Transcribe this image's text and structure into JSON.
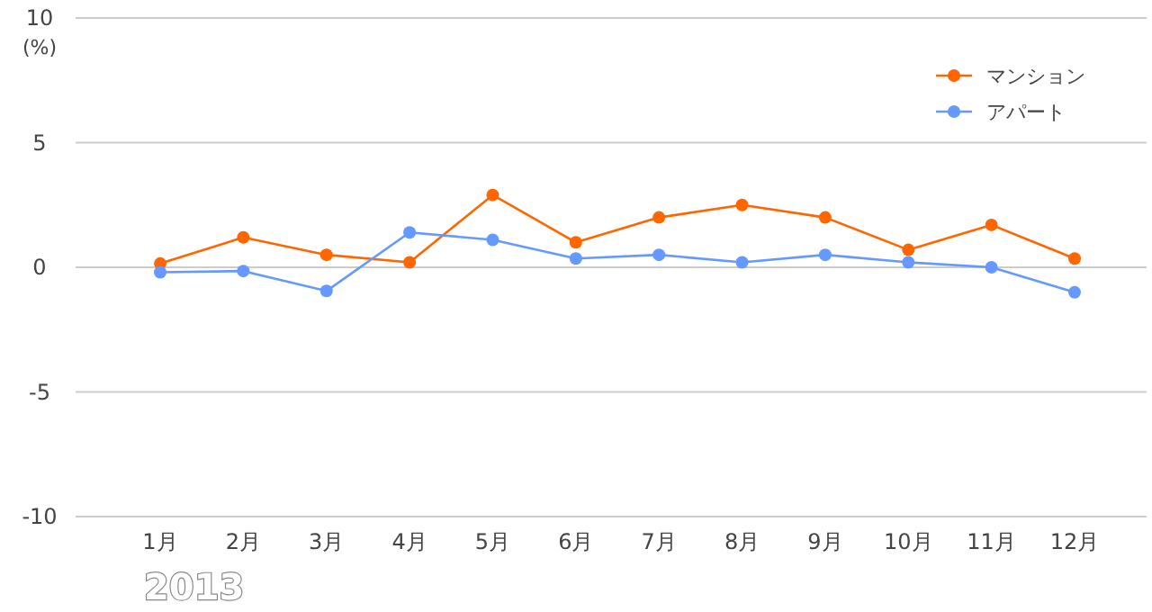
{
  "chart_data": {
    "type": "line",
    "ylabel": "(%)",
    "categories": [
      "1月",
      "2月",
      "3月",
      "4月",
      "5月",
      "6月",
      "7月",
      "8月",
      "9月",
      "10月",
      "11月",
      "12月"
    ],
    "series": [
      {
        "name": "マンション",
        "color": "#ff6600",
        "values": [
          0.15,
          1.2,
          0.5,
          0.2,
          2.9,
          1.0,
          2.0,
          2.5,
          2.0,
          0.7,
          1.7,
          0.35
        ]
      },
      {
        "name": "アパート",
        "color": "#6699ff",
        "values": [
          -0.2,
          -0.15,
          -0.95,
          1.4,
          1.1,
          0.35,
          0.5,
          0.2,
          0.5,
          0.2,
          0,
          -1.0
        ]
      }
    ],
    "ylim": [
      -10,
      10
    ],
    "yticks": [
      -10,
      -5,
      0,
      5,
      10
    ],
    "grid": "y",
    "legend": "top right",
    "marker": "circle",
    "line_style": "solid",
    "annotations": [
      "2013"
    ]
  }
}
